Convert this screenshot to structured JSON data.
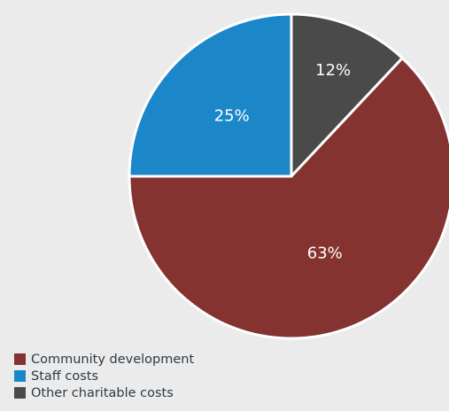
{
  "chart_data": {
    "type": "pie",
    "slices": [
      {
        "label": "Other charitable costs",
        "value": 12,
        "display": "12%",
        "color": "#4a4a4a"
      },
      {
        "label": "Community development",
        "value": 63,
        "display": "63%",
        "color": "#843330"
      },
      {
        "label": "Staff costs",
        "value": 25,
        "display": "25%",
        "color": "#1b87c9"
      }
    ],
    "legend": {
      "position": "bottom-left",
      "items": [
        {
          "label": "Community development",
          "color": "#843330"
        },
        {
          "label": "Staff costs",
          "color": "#1b87c9"
        },
        {
          "label": "Other charitable costs",
          "color": "#4a4a4a"
        }
      ]
    }
  }
}
